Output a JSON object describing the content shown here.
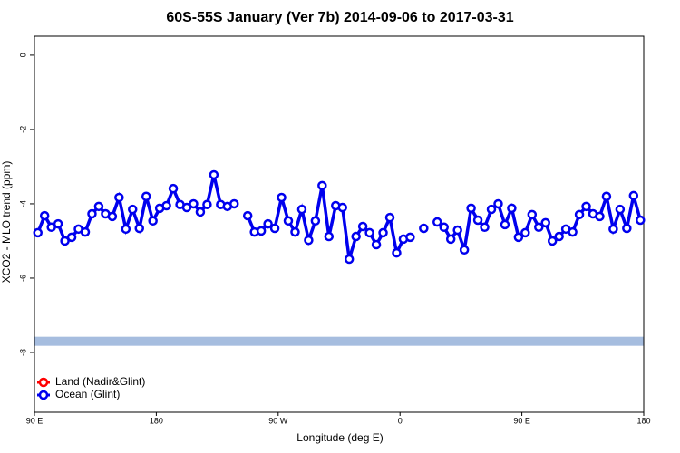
{
  "chart_data": {
    "type": "line",
    "title": "60S-55S January (Ver 7b)   2014-09-06 to 2017-03-31",
    "x_label": "Longitude (deg E)",
    "y_label": "XCO2 - MLO trend (ppm)",
    "x": [
      92.5,
      97.5,
      102.5,
      107.5,
      112.5,
      117.5,
      122.5,
      127.5,
      132.5,
      137.5,
      142.5,
      147.5,
      152.5,
      157.5,
      162.5,
      167.5,
      172.5,
      177.5,
      182.5,
      187.5,
      192.5,
      197.5,
      202.5,
      207.5,
      212.5,
      217.5,
      222.5,
      227.5,
      232.5,
      237.5,
      242.5,
      247.5,
      252.5,
      257.5,
      262.5,
      267.5,
      272.5,
      277.5,
      282.5,
      287.5,
      292.5,
      297.5,
      302.5,
      307.5,
      312.5,
      317.5,
      322.5,
      327.5,
      332.5,
      337.5,
      342.5,
      347.5,
      352.5,
      357.5,
      362.5,
      367.5,
      372.5,
      377.5,
      382.5,
      387.5,
      392.5,
      397.5,
      402.5,
      407.5,
      412.5,
      417.5,
      422.5,
      427.5,
      432.5,
      437.5,
      442.5,
      447.5,
      452.5,
      457.5,
      462.5,
      467.5,
      472.5,
      477.5,
      482.5,
      487.5,
      492.5,
      497.5,
      502.5,
      507.5,
      512.5,
      517.5,
      522.5,
      527.5,
      532.5,
      537.5
    ],
    "series": [
      {
        "name": "Land (Nadir&Glint)",
        "color": "#ff0000",
        "values": [
          null,
          null,
          null,
          null,
          null,
          null,
          null,
          null,
          null,
          null,
          null,
          null,
          null,
          null,
          null,
          null,
          null,
          null,
          null,
          null,
          null,
          null,
          null,
          null,
          null,
          null,
          null,
          null,
          null,
          null,
          null,
          null,
          null,
          null,
          null,
          null,
          null,
          null,
          null,
          null,
          null,
          null,
          null,
          null,
          null,
          null,
          null,
          null,
          null,
          null,
          null,
          null,
          null,
          null,
          null,
          null,
          null,
          null,
          null,
          null,
          null,
          null,
          null,
          null,
          null,
          null,
          null,
          null,
          null,
          null,
          null,
          null,
          null,
          null,
          null,
          null,
          null,
          null,
          null,
          null,
          null,
          null,
          null,
          null,
          null,
          null,
          null,
          null,
          null,
          null
        ]
      },
      {
        "name": "Ocean (Glint)",
        "color": "#0000ee",
        "values": [
          -4.78,
          -4.32,
          -4.63,
          -4.54,
          -5.0,
          -4.9,
          -4.68,
          -4.76,
          -4.27,
          -4.07,
          -4.27,
          -4.34,
          -3.83,
          -4.68,
          -4.15,
          -4.66,
          -3.8,
          -4.46,
          -4.12,
          -4.05,
          -3.59,
          -4.02,
          -4.1,
          -4.0,
          -4.22,
          -4.02,
          -3.22,
          -4.02,
          -4.07,
          -4.0,
          null,
          -4.32,
          -4.76,
          -4.73,
          -4.54,
          -4.66,
          -3.83,
          -4.46,
          -4.76,
          -4.15,
          -4.98,
          -4.46,
          -3.51,
          -4.88,
          -4.05,
          -4.1,
          -5.49,
          -4.88,
          -4.61,
          -4.78,
          -5.1,
          -4.78,
          -4.37,
          -5.32,
          -4.95,
          -4.9,
          null,
          -4.66,
          null,
          -4.49,
          -4.63,
          -4.95,
          -4.71,
          -5.24,
          -4.12,
          -4.44,
          -4.63,
          -4.15,
          -4.0,
          -4.56,
          -4.12,
          -4.9,
          -4.78,
          -4.29,
          -4.63,
          -4.51,
          -5.0,
          -4.88,
          -4.68,
          -4.76,
          -4.29,
          -4.07,
          -4.27,
          -4.34,
          -3.8,
          -4.68,
          -4.15,
          -4.66,
          -3.78,
          -4.44
        ]
      }
    ],
    "xlim": [
      90,
      540
    ],
    "xticks": [
      {
        "value": 90,
        "label": "90 E"
      },
      {
        "value": 180,
        "label": "180"
      },
      {
        "value": 270,
        "label": "90 W"
      },
      {
        "value": 360,
        "label": "0"
      },
      {
        "value": 450,
        "label": "90 E"
      },
      {
        "value": 540,
        "label": "180"
      }
    ],
    "ylim": [
      -9.61,
      0.51
    ],
    "yticks": [
      0,
      -2,
      -4,
      -6,
      -8
    ],
    "band": {
      "value": -7.7,
      "color": "#a6bddf"
    },
    "legend": "bottom-left"
  }
}
